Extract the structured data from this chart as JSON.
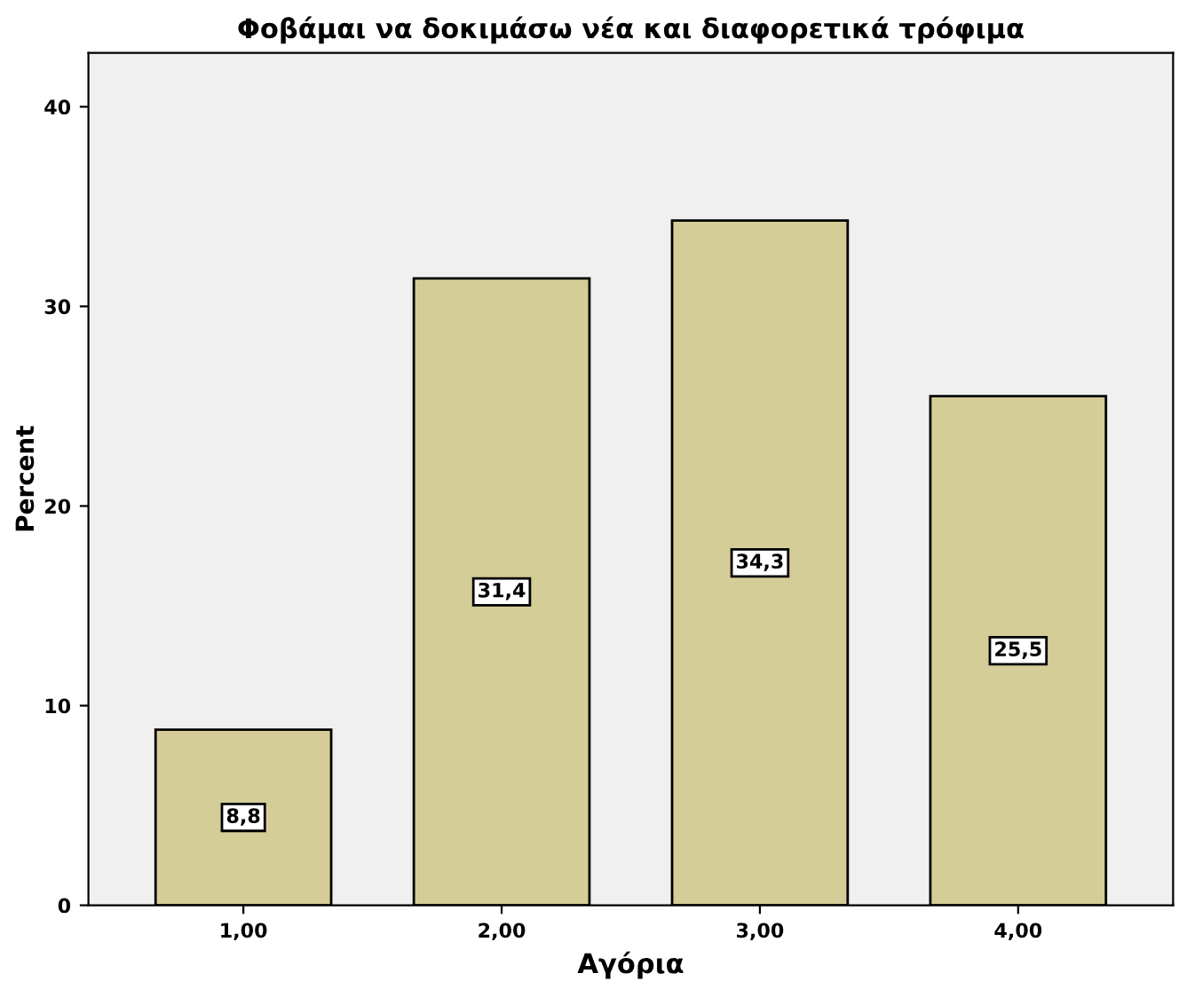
{
  "chart_data": {
    "type": "bar",
    "title": "Φοβάμαι να δοκιμάσω νέα και διαφορετικά τρόφιμα",
    "xlabel": "Αγόρια",
    "ylabel": "Percent",
    "categories": [
      "1,00",
      "2,00",
      "3,00",
      "4,00"
    ],
    "values": [
      8.8,
      31.4,
      34.3,
      25.5
    ],
    "value_labels": [
      "8,8",
      "31,4",
      "34,3",
      "25,5"
    ],
    "color": "#d5cd98",
    "ylim": [
      0,
      42.7
    ],
    "yticks": [
      0,
      10,
      20,
      30,
      40
    ],
    "grid": false,
    "legend": false
  }
}
